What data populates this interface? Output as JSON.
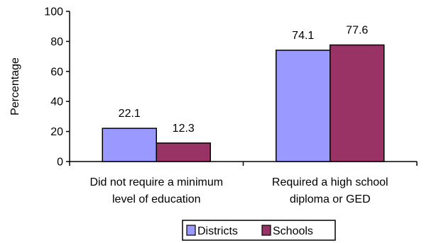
{
  "chart_data": {
    "type": "bar",
    "categories": [
      [
        "Did not require a minimum",
        "level of education"
      ],
      [
        "Required a high school",
        "diploma or GED"
      ]
    ],
    "series": [
      {
        "name": "Districts",
        "color": "#9999ff",
        "values": [
          22.1,
          74.1
        ]
      },
      {
        "name": "Schools",
        "color": "#993366",
        "values": [
          12.3,
          77.6
        ]
      }
    ],
    "data_labels": [
      [
        "22.1",
        "74.1"
      ],
      [
        "12.3",
        "77.6"
      ]
    ],
    "ylabel": "Percentage",
    "xlabel": "",
    "ylim": [
      0,
      100
    ],
    "yticks": [
      0,
      20,
      40,
      60,
      80,
      100
    ],
    "legend_position": "bottom",
    "grid": false
  }
}
